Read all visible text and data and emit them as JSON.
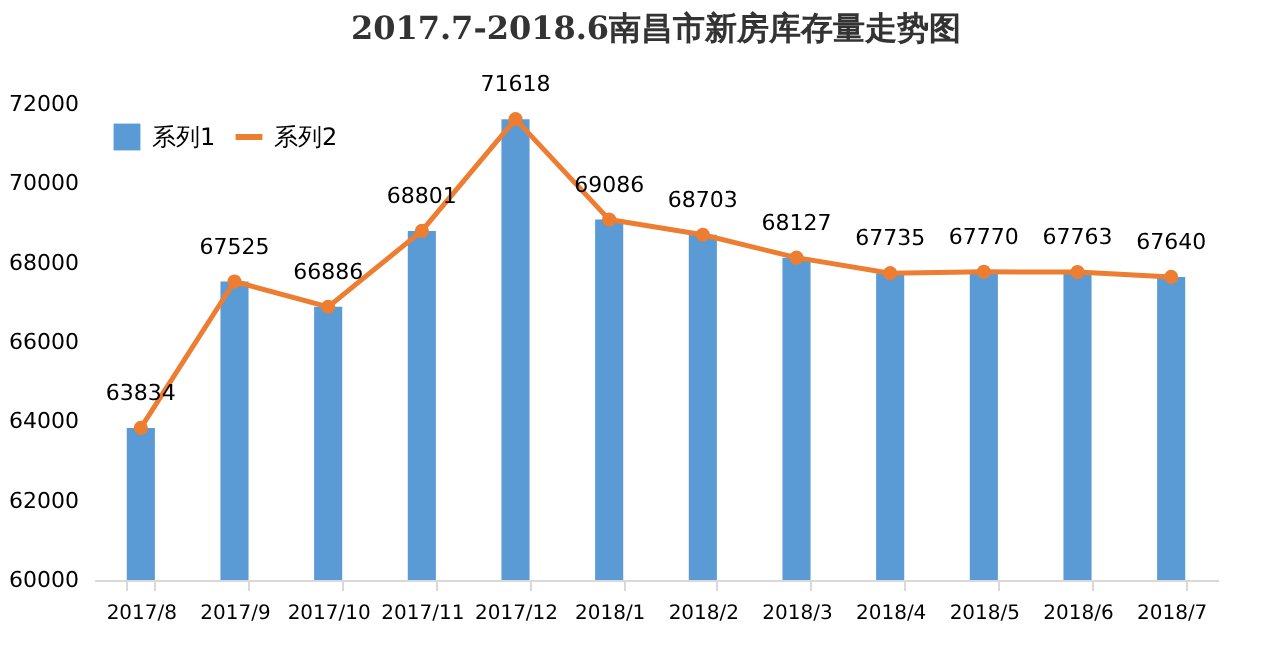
{
  "chart_data": {
    "type": "bar",
    "title": "2017.7-2018.6南昌市新房库存量走势图",
    "categories": [
      "2017/8",
      "2017/9",
      "2017/10",
      "2017/11",
      "2017/12",
      "2018/1",
      "2018/2",
      "2018/3",
      "2018/4",
      "2018/5",
      "2018/6",
      "2018/7"
    ],
    "series": [
      {
        "name": "系列1",
        "color": "#5b9bd5",
        "values": [
          63834,
          67525,
          66886,
          68801,
          71618,
          69086,
          68703,
          68127,
          67735,
          67770,
          67763,
          67640
        ]
      },
      {
        "name": "系列2",
        "type": "line",
        "color": "#ed7d31",
        "values": [
          63834,
          67525,
          66886,
          68801,
          71618,
          69086,
          68703,
          68127,
          67735,
          67770,
          67763,
          67640
        ],
        "value_labels": [
          "63834",
          "67525",
          "66886",
          "68801",
          "71618",
          "69086",
          "68703",
          "68127",
          "67735",
          "67770",
          "67763",
          "67640"
        ]
      }
    ],
    "ylim": [
      60000,
      72000
    ],
    "yticks": [
      60000,
      62000,
      64000,
      66000,
      68000,
      70000,
      72000
    ],
    "grid": false,
    "legend": "top left",
    "marker": "circle"
  }
}
